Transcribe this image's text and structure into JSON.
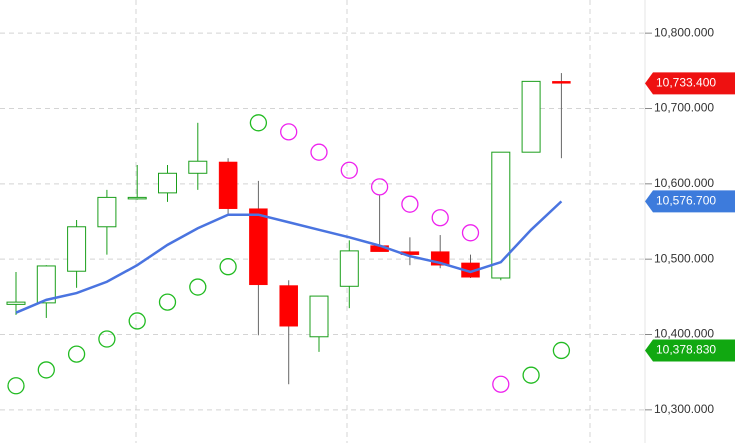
{
  "chart_data": {
    "type": "candlestick",
    "ylim": [
      10256,
      10844
    ],
    "yticks": [
      {
        "value": 10300,
        "label": "10,300.000"
      },
      {
        "value": 10400,
        "label": "10,400.000"
      },
      {
        "value": 10500,
        "label": "10,500.000"
      },
      {
        "value": 10600,
        "label": "10,600.000"
      },
      {
        "value": 10700,
        "label": "10,700.000"
      },
      {
        "value": 10800,
        "label": "10,800.000"
      }
    ],
    "grid": true,
    "candles": {
      "open": [
        10440,
        10442,
        10484,
        10543,
        10580,
        10588,
        10614,
        10629,
        10567,
        10465,
        10397,
        10464,
        10518,
        10510,
        10510,
        10495,
        10475,
        10642,
        10736
      ],
      "high": [
        10483,
        10492,
        10552,
        10592,
        10625,
        10625,
        10681,
        10634,
        10604,
        10472,
        10451,
        10525,
        10585,
        10529,
        10532,
        10506,
        10642,
        10736,
        10747
      ],
      "low": [
        10426,
        10422,
        10462,
        10506,
        10579,
        10576,
        10592,
        10559,
        10399,
        10334,
        10377,
        10435,
        10510,
        10492,
        10488,
        10475,
        10472,
        10642,
        10634
      ],
      "close": [
        10443,
        10491,
        10543,
        10582,
        10582,
        10614,
        10630,
        10567,
        10466,
        10411,
        10451,
        10511,
        10510,
        10506,
        10492,
        10476,
        10642,
        10736,
        10733.4
      ],
      "up_color": "#1a9e1a",
      "down_color": "#ff0000",
      "value_labels": [
        null,
        null,
        null,
        null,
        null,
        null,
        null,
        null,
        null,
        null,
        null,
        null,
        null,
        null,
        null,
        null,
        null,
        null,
        "10,733.400"
      ],
      "label_color": "#ee1111"
    },
    "overlays": [
      {
        "type": "line",
        "color": "#4a74e0",
        "values": [
          10429,
          10446,
          10455,
          10470,
          10492,
          10519,
          10541,
          10559,
          10559,
          10549,
          10539,
          10529,
          10518,
          10504,
          10495,
          10483,
          10496,
          10539,
          10576.7
        ],
        "value_labels": [
          null,
          null,
          null,
          null,
          null,
          null,
          null,
          null,
          null,
          null,
          null,
          null,
          null,
          null,
          null,
          null,
          null,
          null,
          "10,576.700"
        ],
        "label_color": "#3d7bdc"
      },
      {
        "type": "scatter",
        "values": [
          10332,
          10353,
          10374,
          10394,
          10418,
          10443,
          10463,
          10490,
          10681,
          10669,
          10642,
          10618,
          10596,
          10573,
          10555,
          10535,
          10334,
          10346,
          10378.83
        ],
        "colors": [
          "#22bb22",
          "#22bb22",
          "#22bb22",
          "#22bb22",
          "#22bb22",
          "#22bb22",
          "#22bb22",
          "#22bb22",
          "#22bb22",
          "#ee22ee",
          "#ee22ee",
          "#ee22ee",
          "#ee22ee",
          "#ee22ee",
          "#ee22ee",
          "#ee22ee",
          "#ee22ee",
          "#22bb22",
          "#22bb22"
        ],
        "value_labels": [
          null,
          null,
          null,
          null,
          null,
          null,
          null,
          null,
          null,
          null,
          null,
          null,
          null,
          null,
          null,
          null,
          null,
          null,
          "10,378.830"
        ],
        "label_color": "#11a811"
      }
    ]
  }
}
